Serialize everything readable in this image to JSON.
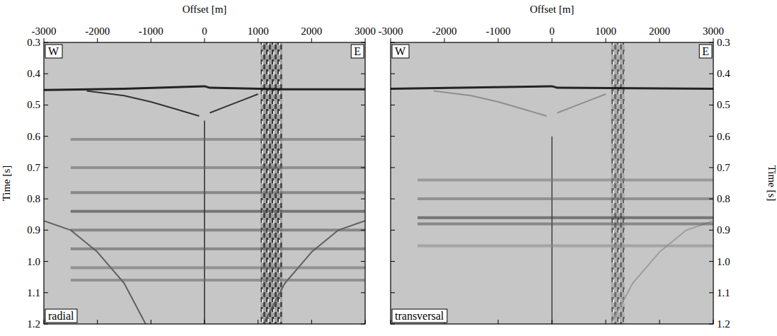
{
  "chart_data": [
    {
      "type": "seismic",
      "title": "radial",
      "annotations": [
        "W",
        "E"
      ],
      "x_label": "Offset [m]",
      "y_label": "Time [s]",
      "xlim": [
        -3000,
        3000
      ],
      "ylim": [
        1.2,
        0.3
      ],
      "xticks": [
        -3000,
        -2000,
        -1000,
        0,
        1000,
        2000,
        3000
      ],
      "yticks": [
        0.3,
        0.4,
        0.5,
        0.6,
        0.7,
        0.8,
        0.9,
        {
          "value": 1,
          "label": "1.0"
        },
        1.1,
        1.2
      ],
      "noise_band": [
        1050,
        1450
      ],
      "series": [
        {
          "color": "#111111",
          "x": [
            -3000,
            -1500,
            0,
            100,
            1500,
            3000
          ],
          "values": [
            0.452,
            0.448,
            0.44,
            0.445,
            0.45,
            0.45
          ]
        },
        {
          "color": "#222222",
          "x": [
            -2200,
            -1500,
            -1000,
            -500,
            -100
          ],
          "values": [
            0.455,
            0.47,
            0.49,
            0.515,
            0.535
          ]
        },
        {
          "color": "#222222",
          "x": [
            100,
            400,
            700,
            1000
          ],
          "values": [
            0.525,
            0.505,
            0.485,
            0.465
          ]
        },
        {
          "color": "#555555",
          "x": [
            -3000,
            -2500,
            -2000,
            -1500,
            -1100
          ],
          "values": [
            0.87,
            0.9,
            0.97,
            1.07,
            1.2
          ]
        },
        {
          "color": "#555555",
          "x": [
            3000,
            2500,
            2000,
            1500,
            1100
          ],
          "values": [
            0.87,
            0.9,
            0.97,
            1.07,
            1.2
          ]
        },
        {
          "color": "#444444",
          "x": [
            0,
            0
          ],
          "values": [
            0.55,
            1.2
          ]
        },
        {
          "color": "#666666",
          "x": [
            -2500,
            3000
          ],
          "values": [
            0.61,
            0.61
          ]
        },
        {
          "color": "#666666",
          "x": [
            -2500,
            3000
          ],
          "values": [
            0.7,
            0.7
          ]
        },
        {
          "color": "#555555",
          "x": [
            -2500,
            3000
          ],
          "values": [
            0.78,
            0.78
          ]
        },
        {
          "color": "#333333",
          "x": [
            -2500,
            3000
          ],
          "values": [
            0.84,
            0.84
          ]
        },
        {
          "color": "#555555",
          "x": [
            -2500,
            3000
          ],
          "values": [
            0.9,
            0.9
          ]
        },
        {
          "color": "#555555",
          "x": [
            -2500,
            3000
          ],
          "values": [
            0.96,
            0.96
          ]
        },
        {
          "color": "#666666",
          "x": [
            -2500,
            3000
          ],
          "values": [
            1.02,
            1.02
          ]
        },
        {
          "color": "#666666",
          "x": [
            -2500,
            3000
          ],
          "values": [
            1.06,
            1.06
          ]
        }
      ]
    },
    {
      "type": "seismic",
      "title": "transversal",
      "annotations": [
        "W",
        "E"
      ],
      "x_label": "Offset [m]",
      "y_label": "Time [s]",
      "xlim": [
        -3000,
        3000
      ],
      "ylim": [
        1.2,
        0.3
      ],
      "xticks": [
        -3000,
        -2000,
        -1000,
        0,
        1000,
        2000,
        3000
      ],
      "yticks": [
        0.3,
        0.4,
        0.5,
        0.6,
        0.7,
        0.8,
        0.9,
        {
          "value": 1,
          "label": "1.0"
        },
        1.1,
        1.2
      ],
      "noise_band": [
        1100,
        1350
      ],
      "series": [
        {
          "color": "#111111",
          "x": [
            -3000,
            0,
            100,
            3000
          ],
          "values": [
            0.448,
            0.44,
            0.445,
            0.448
          ]
        },
        {
          "color": "#888888",
          "x": [
            -2200,
            -1500,
            -1000,
            -500,
            -100
          ],
          "values": [
            0.455,
            0.47,
            0.49,
            0.515,
            0.535
          ]
        },
        {
          "color": "#888888",
          "x": [
            100,
            400,
            700,
            1000
          ],
          "values": [
            0.525,
            0.505,
            0.485,
            0.465
          ]
        },
        {
          "color": "#999999",
          "x": [
            3000,
            2500,
            2000,
            1500,
            1100
          ],
          "values": [
            0.87,
            0.9,
            0.97,
            1.07,
            1.2
          ]
        },
        {
          "color": "#555555",
          "x": [
            0,
            0
          ],
          "values": [
            0.6,
            1.2
          ]
        },
        {
          "color": "#777777",
          "x": [
            -2500,
            3000
          ],
          "values": [
            0.74,
            0.74
          ]
        },
        {
          "color": "#666666",
          "x": [
            -2500,
            3000
          ],
          "values": [
            0.8,
            0.8
          ]
        },
        {
          "color": "#333333",
          "x": [
            -2500,
            3000
          ],
          "values": [
            0.86,
            0.86
          ]
        },
        {
          "color": "#555555",
          "x": [
            -2500,
            3000
          ],
          "values": [
            0.88,
            0.88
          ]
        },
        {
          "color": "#888888",
          "x": [
            -2500,
            3000
          ],
          "values": [
            0.95,
            0.95
          ]
        }
      ]
    }
  ]
}
